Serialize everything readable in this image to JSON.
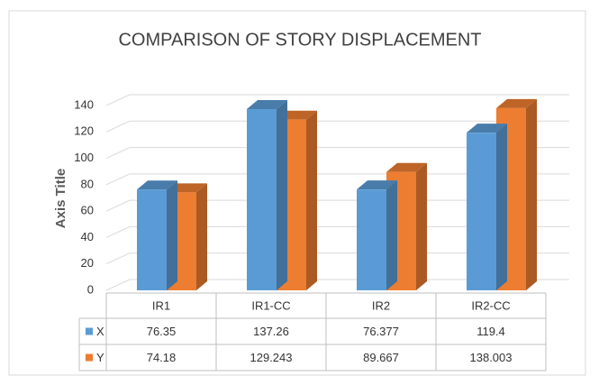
{
  "chart_data": {
    "type": "bar3d",
    "title": "COMPARISON OF STORY DISPLACEMENT",
    "y_axis_label": "Axis Title",
    "categories": [
      "IR1",
      "IR1-CC",
      "IR2",
      "IR2-CC"
    ],
    "series": [
      {
        "name": "X",
        "color": "#5b9bd5",
        "values": [
          76.35,
          137.26,
          76.377,
          119.4
        ]
      },
      {
        "name": "Y",
        "color": "#ed7d31",
        "values": [
          74.18,
          129.243,
          89.667,
          138.003
        ]
      }
    ],
    "ylim": [
      0,
      140
    ],
    "yticks": [
      0,
      20,
      40,
      60,
      80,
      100,
      120,
      140
    ],
    "grid": true,
    "legend": "table"
  }
}
